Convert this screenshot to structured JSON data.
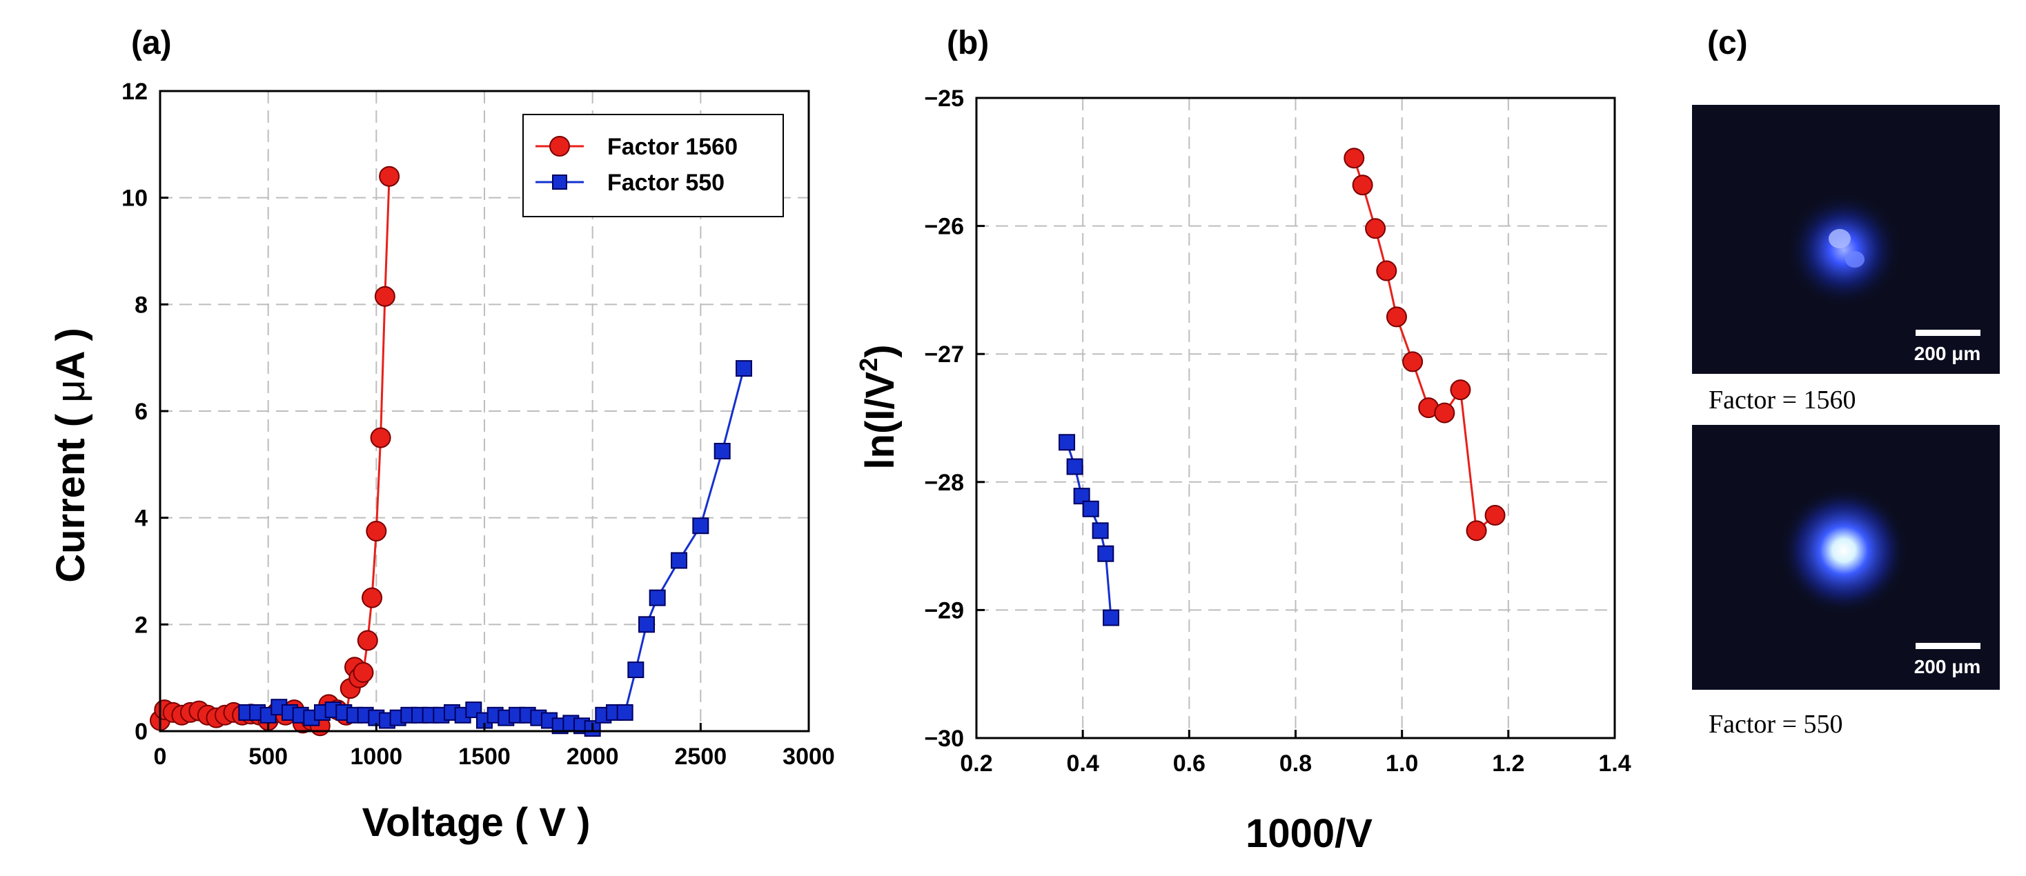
{
  "panels": {
    "a": "(a)",
    "b": "(b)",
    "c": "(c)"
  },
  "colors": {
    "red": "#e8201a",
    "red_edge": "#7a0000",
    "blue": "#1530d0",
    "blue_edge": "#000060",
    "spot": "#2a4cff"
  },
  "chart_data": [
    {
      "id": "chart-a",
      "type": "line",
      "title": "",
      "xlabel": "Voltage ( V )",
      "ylabel_parts": [
        "Current ( ",
        "μ",
        "A )"
      ],
      "xlim": [
        0,
        3000
      ],
      "ylim": [
        0,
        12
      ],
      "xticks": [
        0,
        500,
        1000,
        1500,
        2000,
        2500,
        3000
      ],
      "yticks": [
        0,
        2,
        4,
        6,
        8,
        10,
        12
      ],
      "grid": true,
      "legend_position": "top-right",
      "series": [
        {
          "name": "Factor 1560",
          "marker": "circle",
          "color": "red",
          "x": [
            0,
            20,
            60,
            100,
            140,
            180,
            220,
            260,
            300,
            340,
            380,
            420,
            460,
            500,
            540,
            580,
            620,
            660,
            700,
            740,
            780,
            820,
            860,
            880,
            900,
            920,
            940,
            960,
            980,
            1000,
            1020,
            1040,
            1060,
            1080,
            1100
          ],
          "y": [
            0.2,
            0.4,
            0.35,
            0.3,
            0.35,
            0.38,
            0.3,
            0.25,
            0.3,
            0.35,
            0.3,
            0.32,
            0.3,
            0.2,
            0.35,
            0.3,
            0.4,
            0.15,
            0.2,
            0.1,
            0.5,
            0.4,
            0.3,
            0.8,
            1.2,
            1.0,
            1.1,
            1.7,
            2.5,
            3.75,
            5.5,
            8.15,
            10.4,
            null,
            null
          ]
        },
        {
          "name": "Factor 550",
          "marker": "square",
          "color": "blue",
          "x": [
            400,
            450,
            500,
            550,
            600,
            650,
            700,
            750,
            800,
            850,
            900,
            950,
            1000,
            1050,
            1100,
            1150,
            1200,
            1250,
            1300,
            1350,
            1400,
            1450,
            1500,
            1550,
            1600,
            1650,
            1700,
            1750,
            1800,
            1850,
            1900,
            1950,
            2000,
            2050,
            2100,
            2150,
            2200,
            2250,
            2300,
            2400,
            2500,
            2600,
            2700
          ],
          "y": [
            0.35,
            0.35,
            0.3,
            0.45,
            0.35,
            0.3,
            0.25,
            0.35,
            0.4,
            0.35,
            0.3,
            0.3,
            0.25,
            0.2,
            0.25,
            0.3,
            0.3,
            0.3,
            0.3,
            0.35,
            0.3,
            0.4,
            0.2,
            0.3,
            0.25,
            0.3,
            0.3,
            0.25,
            0.2,
            0.1,
            0.15,
            0.1,
            0.05,
            0.3,
            0.35,
            0.35,
            1.15,
            2.0,
            2.5,
            3.2,
            3.85,
            5.25,
            6.8
          ]
        }
      ]
    },
    {
      "id": "chart-b",
      "type": "line",
      "title": "",
      "xlabel": "1000/V",
      "ylabel_parts": [
        "ln(I/V",
        "2",
        ")"
      ],
      "xlim": [
        0.2,
        1.4
      ],
      "ylim": [
        -30,
        -25
      ],
      "xticks": [
        0.2,
        0.4,
        0.6,
        0.8,
        1.0,
        1.2,
        1.4
      ],
      "xtick_labels": [
        "0.2",
        "0.4",
        "0.6",
        "0.8",
        "1.0",
        "1.2",
        "1.4"
      ],
      "yticks": [
        -30,
        -29,
        -28,
        -27,
        -26,
        -25
      ],
      "ytick_labels": [
        "−30",
        "−29",
        "−28",
        "−27",
        "−26",
        "−25"
      ],
      "grid": true,
      "series": [
        {
          "name": "Factor 1560",
          "marker": "circle",
          "color": "red",
          "x": [
            0.91,
            0.926,
            0.95,
            0.971,
            0.99,
            1.02,
            1.05,
            1.08,
            1.11,
            1.14,
            1.175
          ],
          "y": [
            -25.47,
            -25.68,
            -26.02,
            -26.35,
            -26.71,
            -27.06,
            -27.42,
            -27.46,
            -27.28,
            -28.38,
            -28.26
          ]
        },
        {
          "name": "Factor 550",
          "marker": "square",
          "color": "blue",
          "x": [
            0.37,
            0.385,
            0.398,
            0.415,
            0.433,
            0.443,
            0.453
          ],
          "y": [
            -27.69,
            -27.88,
            -28.11,
            -28.21,
            -28.38,
            -28.56,
            -29.06
          ]
        }
      ]
    }
  ],
  "images": [
    {
      "scale_label": "200 μm",
      "caption": "Factor = 1560"
    },
    {
      "scale_label": "200 μm",
      "caption": "Factor = 550"
    }
  ]
}
